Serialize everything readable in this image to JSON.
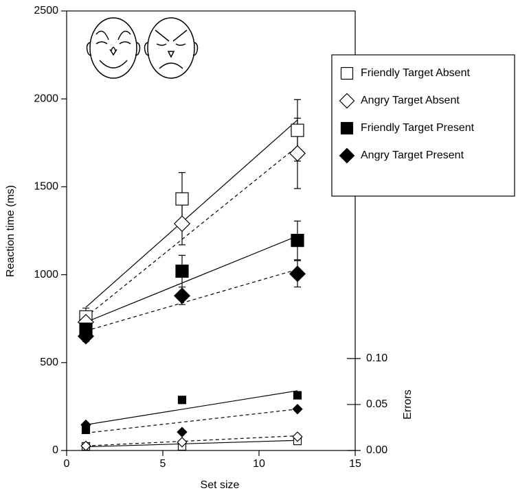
{
  "chart_data": {
    "type": "line",
    "x_label": "Set size",
    "y_label": "Reaction time (ms)",
    "y2_label": "Errors",
    "x": [
      1,
      6,
      12
    ],
    "xlim": [
      0,
      15
    ],
    "xticks": [
      0,
      5,
      10,
      15
    ],
    "ylim": [
      0,
      2500
    ],
    "yticks": [
      0,
      500,
      1000,
      1500,
      2000,
      2500
    ],
    "y2lim": [
      0,
      0.478
    ],
    "y2ticks": [
      {
        "value": 0,
        "label": "0.00"
      },
      {
        "value": 0.05,
        "label": "0.05"
      },
      {
        "value": 0.1,
        "label": "0.10"
      }
    ],
    "series": [
      {
        "name": "Friendly Target Absent",
        "marker": "square",
        "filled": false,
        "dashed": false,
        "color": "#000000",
        "values": [
          760,
          1431,
          1821
        ],
        "errors": [
          50,
          150,
          175
        ],
        "fit": [
          815,
          1880
        ],
        "error_rates": [
          0.0045,
          0.0045,
          0.0104
        ],
        "error_rate_fit": [
          0.004,
          0.011
        ]
      },
      {
        "name": "Angry Target Absent",
        "marker": "diamond",
        "filled": false,
        "dashed": true,
        "color": "#000000",
        "values": [
          730,
          1290,
          1690
        ],
        "errors": [
          40,
          120,
          200
        ],
        "fit": [
          760,
          1730
        ],
        "error_rates": [
          0.005,
          0.009,
          0.015
        ],
        "error_rate_fit": [
          0.005,
          0.016
        ]
      },
      {
        "name": "Friendly Target Present",
        "marker": "square",
        "filled": true,
        "dashed": false,
        "color": "#000000",
        "values": [
          690,
          1020,
          1195
        ],
        "errors": [
          40,
          90,
          110
        ],
        "fit": [
          730,
          1220
        ],
        "error_rates": [
          0.0224,
          0.055,
          0.06
        ],
        "error_rate_fit": [
          0.028,
          0.065
        ]
      },
      {
        "name": "Angry Target Present",
        "marker": "diamond",
        "filled": true,
        "dashed": true,
        "color": "#000000",
        "values": [
          650,
          880,
          1005
        ],
        "errors": [
          30,
          50,
          75
        ],
        "fit": [
          680,
          1030
        ],
        "error_rates": [
          0.028,
          0.02,
          0.045
        ],
        "error_rate_fit": [
          0.019,
          0.045
        ]
      }
    ]
  }
}
